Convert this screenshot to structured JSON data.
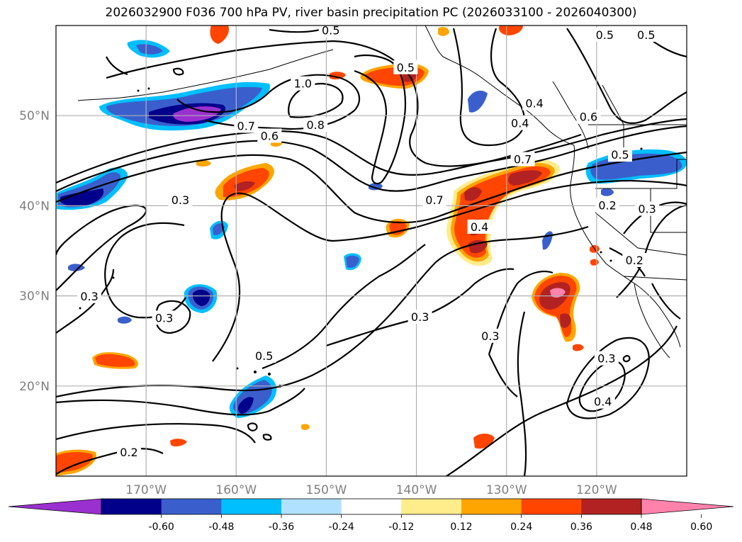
{
  "title": "2026032900 F036 700 hPa PV, river basin precipitation PC (2026033100 - 2026040300)",
  "map": {
    "lon_range": [
      -180,
      -110
    ],
    "lat_range": [
      10,
      60
    ],
    "lon_ticks": [
      -170,
      -160,
      -150,
      -140,
      -130,
      -120
    ],
    "lon_tick_labels": [
      "170°W",
      "160°W",
      "150°W",
      "140°W",
      "130°W",
      "120°W"
    ],
    "lat_ticks": [
      20,
      30,
      40,
      50
    ],
    "lat_tick_labels": [
      "20°N",
      "30°N",
      "40°N",
      "50°N"
    ],
    "grid": true
  },
  "colorbar": {
    "levels": [
      "-0.60",
      "-0.48",
      "-0.36",
      "-0.24",
      "-0.12",
      "0.12",
      "0.24",
      "0.36",
      "0.48",
      "0.60"
    ],
    "colors": [
      "#9b30d0",
      "#00008b",
      "#3a5fcd",
      "#00bfff",
      "#b0e2ff",
      "#ffffff",
      "#ffec8b",
      "#ffa500",
      "#ff4500",
      "#b22222",
      "#ff82ab"
    ],
    "extend": "both"
  },
  "contour_labels": [
    {
      "text": "0.5",
      "lon": -149.5,
      "lat": 59.4
    },
    {
      "text": "1.0",
      "lon": -152.6,
      "lat": 53.5
    },
    {
      "text": "0.7",
      "lon": -158.9,
      "lat": 48.8
    },
    {
      "text": "0.6",
      "lon": -156.3,
      "lat": 47.7
    },
    {
      "text": "0.8",
      "lon": -151.2,
      "lat": 48.9
    },
    {
      "text": "0.5",
      "lon": -141.2,
      "lat": 55.3
    },
    {
      "text": "0.4",
      "lon": -126.9,
      "lat": 51.3
    },
    {
      "text": "0.4",
      "lon": -128.5,
      "lat": 49.1
    },
    {
      "text": "0.6",
      "lon": -120.9,
      "lat": 49.8
    },
    {
      "text": "0.5",
      "lon": -119.1,
      "lat": 58.9
    },
    {
      "text": "0.5",
      "lon": -114.5,
      "lat": 58.9
    },
    {
      "text": "0.7",
      "lon": -128.2,
      "lat": 45.1
    },
    {
      "text": "0.5",
      "lon": -117.4,
      "lat": 45.6
    },
    {
      "text": "0.7",
      "lon": -138.0,
      "lat": 40.6
    },
    {
      "text": "0.4",
      "lon": -133.0,
      "lat": 37.6
    },
    {
      "text": "0.3",
      "lon": -166.2,
      "lat": 40.6
    },
    {
      "text": "0.2",
      "lon": -118.8,
      "lat": 40.0
    },
    {
      "text": "0.3",
      "lon": -114.4,
      "lat": 39.6
    },
    {
      "text": "0.2",
      "lon": -115.8,
      "lat": 33.9
    },
    {
      "text": "0.3",
      "lon": -176.3,
      "lat": 29.9
    },
    {
      "text": "0.3",
      "lon": -168.0,
      "lat": 27.5
    },
    {
      "text": "0.5",
      "lon": -156.9,
      "lat": 23.3
    },
    {
      "text": "0.3",
      "lon": -139.6,
      "lat": 27.6
    },
    {
      "text": "0.3",
      "lon": -131.8,
      "lat": 25.5
    },
    {
      "text": "0.3",
      "lon": -118.9,
      "lat": 23.0
    },
    {
      "text": "0.4",
      "lon": -119.3,
      "lat": 18.2
    },
    {
      "text": "0.2",
      "lon": -171.9,
      "lat": 12.6
    }
  ]
}
